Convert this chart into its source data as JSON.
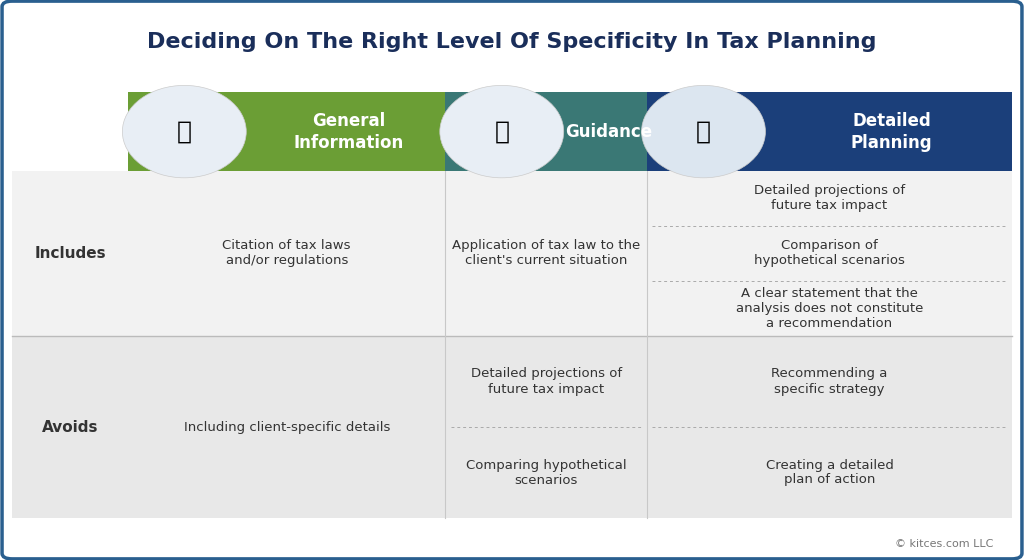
{
  "title": "Deciding On The Right Level Of Specificity In Tax Planning",
  "title_color": "#1a2e5a",
  "title_fontsize": 16,
  "bg_color": "#ffffff",
  "border_color": "#2a5f8f",
  "footer": "© kitces.com LLC",
  "columns": [
    {
      "label": "General\nInformation",
      "color": "#6b9e35",
      "icon": "📢",
      "icon_bg": "#e8eef5"
    },
    {
      "label": "Guidance",
      "color": "#3a7875",
      "icon": "🚦",
      "icon_bg": "#e8eef5"
    },
    {
      "label": "Detailed\nPlanning",
      "color": "#1b3f7a",
      "icon": "📋",
      "icon_bg": "#dce6f0"
    }
  ],
  "row_label_fontsize": 11,
  "includes_row": {
    "col1": "Citation of tax laws\nand/or regulations",
    "col2": "Application of tax law to the\nclient's current situation",
    "col3_items": [
      "Detailed projections of\nfuture tax impact",
      "Comparison of\nhypothetical scenarios",
      "A clear statement that the\nanalysis does not constitute\na recommendation"
    ]
  },
  "avoids_row": {
    "col1": "Including client-specific details",
    "col2_items": [
      "Detailed projections of\nfuture tax impact",
      "Comparing hypothetical\nscenarios"
    ],
    "col3_items": [
      "Recommending a\nspecific strategy",
      "Creating a detailed\nplan of action"
    ]
  },
  "separator_color": "#aaaaaa",
  "text_color": "#333333",
  "text_fontsize": 9.5,
  "col_divider_color": "#c8c8c8",
  "includes_bg": "#f2f2f2",
  "avoids_bg": "#e8e8e8"
}
